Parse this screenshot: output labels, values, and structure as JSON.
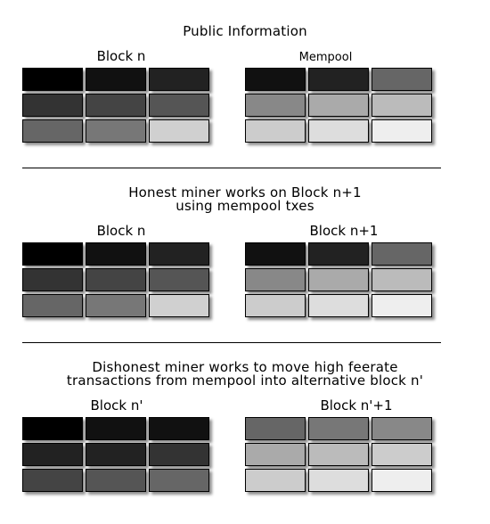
{
  "sections": [
    {
      "heading": [
        "Public Information"
      ],
      "blocks": [
        {
          "title": "Block n",
          "small": false,
          "cells": [
            "#000000",
            "#111111",
            "#222222",
            "#333333",
            "#444444",
            "#555555",
            "#666666",
            "#777777",
            "#d0d0d0"
          ]
        },
        {
          "title": "Mempool",
          "small": true,
          "cells": [
            "#111111",
            "#222222",
            "#666666",
            "#888888",
            "#aaaaaa",
            "#bbbbbb",
            "#cccccc",
            "#dddddd",
            "#eeeeee"
          ]
        }
      ]
    },
    {
      "heading": [
        "Honest miner works on Block n+1",
        "using mempool txes"
      ],
      "blocks": [
        {
          "title": "Block n",
          "small": false,
          "cells": [
            "#000000",
            "#111111",
            "#222222",
            "#333333",
            "#444444",
            "#555555",
            "#666666",
            "#777777",
            "#d0d0d0"
          ]
        },
        {
          "title": "Block n+1",
          "small": false,
          "cells": [
            "#111111",
            "#222222",
            "#666666",
            "#888888",
            "#aaaaaa",
            "#bbbbbb",
            "#cccccc",
            "#dddddd",
            "#eeeeee"
          ]
        }
      ]
    },
    {
      "heading": [
        "Dishonest miner works to move high feerate",
        "transactions from mempool into alternative block n'"
      ],
      "blocks": [
        {
          "title": "Block n'",
          "small": false,
          "cells": [
            "#000000",
            "#111111",
            "#111111",
            "#222222",
            "#222222",
            "#333333",
            "#444444",
            "#555555",
            "#666666"
          ]
        },
        {
          "title": "Block n'+1",
          "small": false,
          "cells": [
            "#666666",
            "#777777",
            "#888888",
            "#aaaaaa",
            "#bbbbbb",
            "#cccccc",
            "#cccccc",
            "#dddddd",
            "#eeeeee"
          ]
        }
      ]
    }
  ]
}
